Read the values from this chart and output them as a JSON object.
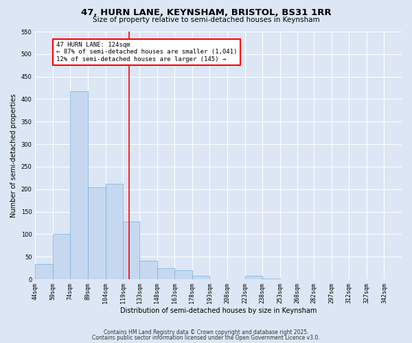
{
  "title": "47, HURN LANE, KEYNSHAM, BRISTOL, BS31 1RR",
  "subtitle": "Size of property relative to semi-detached houses in Keynsham",
  "xlabel": "Distribution of semi-detached houses by size in Keynsham",
  "ylabel": "Number of semi-detached properties",
  "bin_labels": [
    "44sqm",
    "59sqm",
    "74sqm",
    "89sqm",
    "104sqm",
    "119sqm",
    "133sqm",
    "148sqm",
    "163sqm",
    "178sqm",
    "193sqm",
    "208sqm",
    "223sqm",
    "238sqm",
    "253sqm",
    "268sqm",
    "282sqm",
    "297sqm",
    "312sqm",
    "327sqm",
    "342sqm"
  ],
  "bin_edges": [
    44,
    59,
    74,
    89,
    104,
    119,
    133,
    148,
    163,
    178,
    193,
    208,
    223,
    238,
    253,
    268,
    282,
    297,
    312,
    327,
    342
  ],
  "bar_heights": [
    33,
    100,
    418,
    204,
    212,
    128,
    42,
    25,
    20,
    7,
    0,
    0,
    8,
    2,
    0,
    0,
    0,
    0,
    0,
    0,
    0
  ],
  "bar_color": "#c5d8f0",
  "bar_edge_color": "#7aafd4",
  "property_size": 124,
  "vline_x": 124,
  "vline_color": "red",
  "annotation_line1": "47 HURN LANE: 124sqm",
  "annotation_line2": "← 87% of semi-detached houses are smaller (1,041)",
  "annotation_line3": "12% of semi-detached houses are larger (145) →",
  "ylim": [
    0,
    550
  ],
  "yticks": [
    0,
    50,
    100,
    150,
    200,
    250,
    300,
    350,
    400,
    450,
    500,
    550
  ],
  "bg_color": "#dce6f5",
  "plot_bg_color": "#dce6f5",
  "grid_color": "white",
  "footer_line1": "Contains HM Land Registry data © Crown copyright and database right 2025.",
  "footer_line2": "Contains public sector information licensed under the Open Government Licence v3.0.",
  "title_fontsize": 9.5,
  "subtitle_fontsize": 7.5,
  "label_fontsize": 7,
  "tick_fontsize": 6,
  "annot_fontsize": 6.5,
  "footer_fontsize": 5.5
}
